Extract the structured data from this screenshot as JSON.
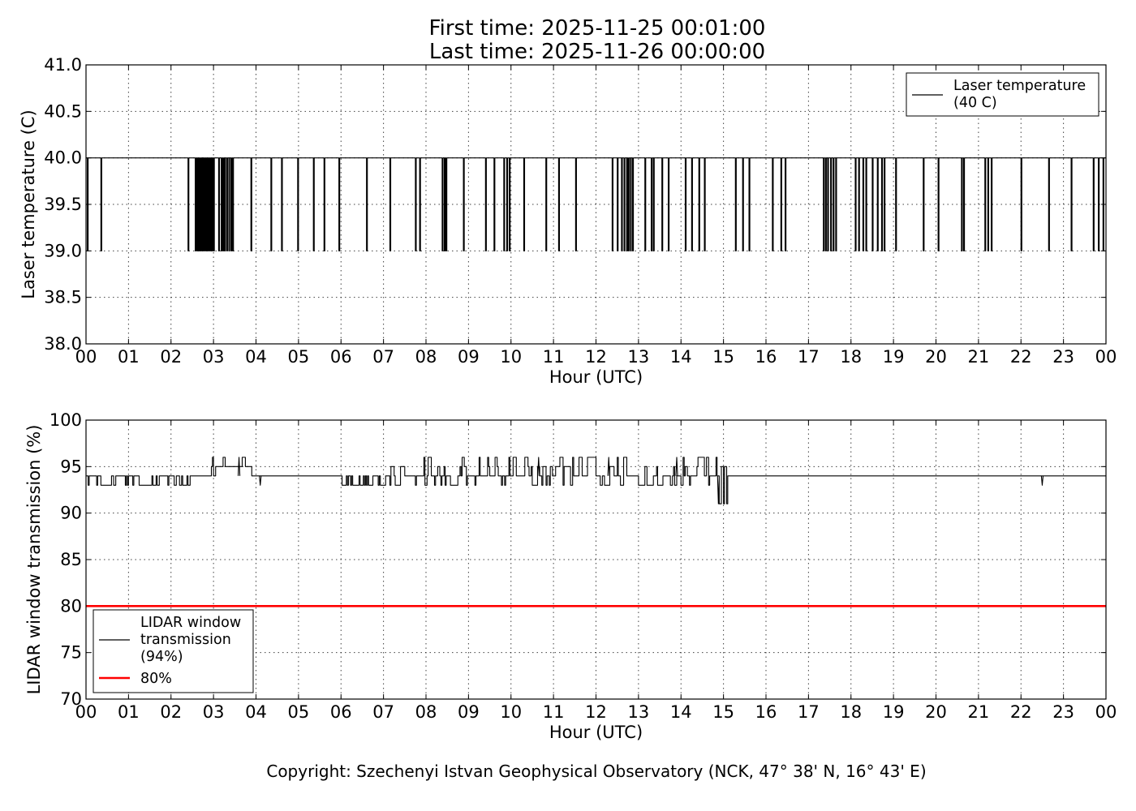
{
  "title_lines": [
    "First time: 2025-11-25 00:01:00",
    "Last time: 2025-11-26 00:00:00"
  ],
  "copyright": "Copyright: Szechenyi Istvan Geophysical Observatory (NCK, 47° 38' N, 16° 43' E)",
  "chart_data": [
    {
      "type": "line",
      "xlabel": "Hour (UTC)",
      "ylabel": "Laser temperature (C)",
      "xlim": [
        0,
        24
      ],
      "ylim": [
        38.0,
        41.0
      ],
      "xticks": [
        0,
        1,
        2,
        3,
        4,
        5,
        6,
        7,
        8,
        9,
        10,
        11,
        12,
        13,
        14,
        15,
        16,
        17,
        18,
        19,
        20,
        21,
        22,
        23,
        24
      ],
      "xtick_labels": [
        "00",
        "01",
        "02",
        "03",
        "04",
        "05",
        "06",
        "07",
        "08",
        "09",
        "10",
        "11",
        "12",
        "13",
        "14",
        "15",
        "16",
        "17",
        "18",
        "19",
        "20",
        "21",
        "22",
        "23",
        "00"
      ],
      "yticks": [
        38.0,
        38.5,
        39.0,
        39.5,
        40.0,
        40.5,
        41.0
      ],
      "ytick_labels": [
        "38.0",
        "38.5",
        "39.0",
        "39.5",
        "40.0",
        "40.5",
        "41.0"
      ],
      "grid": true,
      "legend_position": "top-right",
      "baseline": 40.0,
      "series": [
        {
          "name": "Laser temperature\n(40 C)",
          "color": "#000000",
          "baseline": 40.0,
          "dip_value": 39.0,
          "dip_times": [
            0.03,
            0.35,
            2.4,
            2.57,
            2.61,
            2.64,
            2.67,
            2.7,
            2.74,
            2.78,
            2.82,
            2.85,
            2.89,
            2.93,
            2.96,
            3.0,
            3.12,
            3.18,
            3.22,
            3.26,
            3.31,
            3.36,
            3.41,
            3.45,
            3.88,
            4.35,
            4.6,
            4.98,
            5.35,
            5.6,
            5.95,
            6.6,
            7.15,
            7.75,
            7.85,
            8.38,
            8.43,
            8.47,
            8.88,
            9.4,
            9.6,
            9.83,
            9.9,
            9.96,
            10.3,
            10.82,
            11.12,
            11.52,
            12.38,
            12.5,
            12.6,
            12.66,
            12.72,
            12.76,
            12.81,
            12.86,
            13.15,
            13.3,
            13.35,
            13.55,
            13.7,
            14.1,
            14.25,
            14.42,
            14.55,
            15.28,
            15.45,
            15.6,
            16.15,
            16.35,
            16.45,
            17.35,
            17.4,
            17.45,
            17.52,
            17.58,
            17.64,
            18.1,
            18.18,
            18.28,
            18.35,
            18.5,
            18.62,
            18.72,
            18.78,
            19.05,
            19.7,
            20.05,
            20.6,
            20.65,
            21.15,
            21.22,
            21.3,
            22.0,
            22.65,
            23.18,
            23.7,
            23.82,
            23.93
          ],
          "values_note": "step series at 40.0 with brief drops to 39.0 at dip_times"
        }
      ]
    },
    {
      "type": "line",
      "xlabel": "Hour (UTC)",
      "ylabel": "LIDAR window transmission (%)",
      "xlim": [
        0,
        24
      ],
      "ylim": [
        70,
        100
      ],
      "xticks": [
        0,
        1,
        2,
        3,
        4,
        5,
        6,
        7,
        8,
        9,
        10,
        11,
        12,
        13,
        14,
        15,
        16,
        17,
        18,
        19,
        20,
        21,
        22,
        23,
        24
      ],
      "xtick_labels": [
        "00",
        "01",
        "02",
        "03",
        "04",
        "05",
        "06",
        "07",
        "08",
        "09",
        "10",
        "11",
        "12",
        "13",
        "14",
        "15",
        "16",
        "17",
        "18",
        "19",
        "20",
        "21",
        "22",
        "23",
        "00"
      ],
      "yticks": [
        70,
        75,
        80,
        85,
        90,
        95,
        100
      ],
      "ytick_labels": [
        "70",
        "75",
        "80",
        "85",
        "90",
        "95",
        "100"
      ],
      "grid": true,
      "legend_position": "bottom-left",
      "series": [
        {
          "name": "LIDAR window\ntransmission\n(94%)",
          "color": "#000000",
          "segments": [
            {
              "start": 0.0,
              "end": 2.6,
              "values": [
                93,
                94
              ]
            },
            {
              "start": 2.6,
              "end": 2.95,
              "values": [
                94
              ]
            },
            {
              "start": 2.95,
              "end": 3.9,
              "values": [
                94,
                95,
                96
              ]
            },
            {
              "start": 3.9,
              "end": 6.0,
              "values": [
                94
              ]
            },
            {
              "start": 6.0,
              "end": 7.0,
              "values": [
                94,
                93
              ]
            },
            {
              "start": 7.0,
              "end": 14.9,
              "values": [
                93,
                94,
                95,
                96
              ]
            },
            {
              "start": 14.9,
              "end": 15.1,
              "values": [
                94,
                91,
                95
              ]
            },
            {
              "start": 15.1,
              "end": 24.0,
              "values": [
                94
              ]
            }
          ],
          "events": [
            {
              "x": 3.6,
              "y": 96
            },
            {
              "x": 4.1,
              "y": 93
            },
            {
              "x": 10.65,
              "y": 96
            },
            {
              "x": 12.3,
              "y": 96
            },
            {
              "x": 13.9,
              "y": 96
            },
            {
              "x": 14.88,
              "y": 91
            },
            {
              "x": 22.5,
              "y": 93
            }
          ]
        },
        {
          "name": "80%",
          "color": "#ff0000",
          "x": [
            0,
            24
          ],
          "y": [
            80,
            80
          ]
        }
      ]
    }
  ]
}
